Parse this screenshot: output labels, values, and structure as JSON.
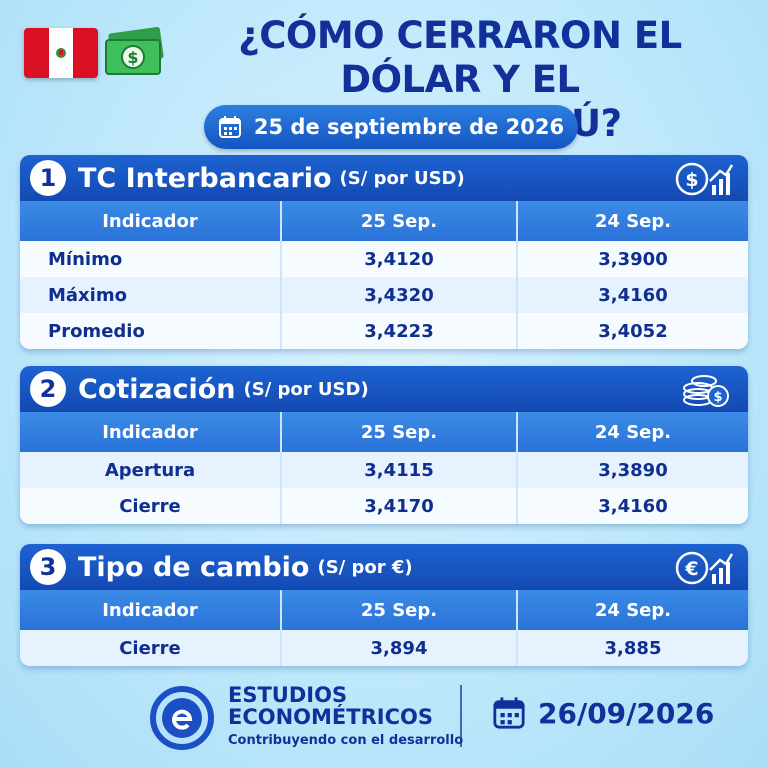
{
  "header": {
    "title_line1": "¿CÓMO CERRARON EL DÓLAR Y EL",
    "title_line2": "EURO EN PERÚ?",
    "date": "25 de septiembre de 2026",
    "icons": [
      "peru-flag",
      "money-icon",
      "calendar-icon"
    ]
  },
  "sections": [
    {
      "number": "1",
      "title": "TC Interbancario",
      "unit": "(S/ por USD)",
      "icon": "dollar-chart-icon",
      "columns": [
        "Indicador",
        "25 Sep.",
        "24 Sep."
      ],
      "rows": [
        [
          "Mínimo",
          "3,4120",
          "3,3900"
        ],
        [
          "Máximo",
          "3,4320",
          "3,4160"
        ],
        [
          "Promedio",
          "3,4223",
          "3,4052"
        ]
      ]
    },
    {
      "number": "2",
      "title": "Cotización",
      "unit": "(S/ por USD)",
      "icon": "coins-icon",
      "columns": [
        "Indicador",
        "25 Sep.",
        "24 Sep."
      ],
      "rows": [
        [
          "Apertura",
          "3,4115",
          "3,3890"
        ],
        [
          "Cierre",
          "3,4170",
          "3,4160"
        ]
      ]
    },
    {
      "number": "3",
      "title": "Tipo de cambio",
      "unit": "(S/ por €)",
      "icon": "euro-chart-icon",
      "columns": [
        "Indicador",
        "25 Sep.",
        "24 Sep."
      ],
      "rows": [
        [
          "Cierre",
          "3,894",
          "3,885"
        ]
      ]
    }
  ],
  "footer": {
    "brand_line1": "ESTUDIOS",
    "brand_line2": "ECONOMÉTRICOS",
    "tagline": "Contribuyendo con el desarrollo",
    "date": "26/09/2026"
  },
  "colors": {
    "primary": "#1455c2",
    "dark_text": "#12309a",
    "background": "#bfe8fb",
    "flag_red": "#d91023"
  }
}
